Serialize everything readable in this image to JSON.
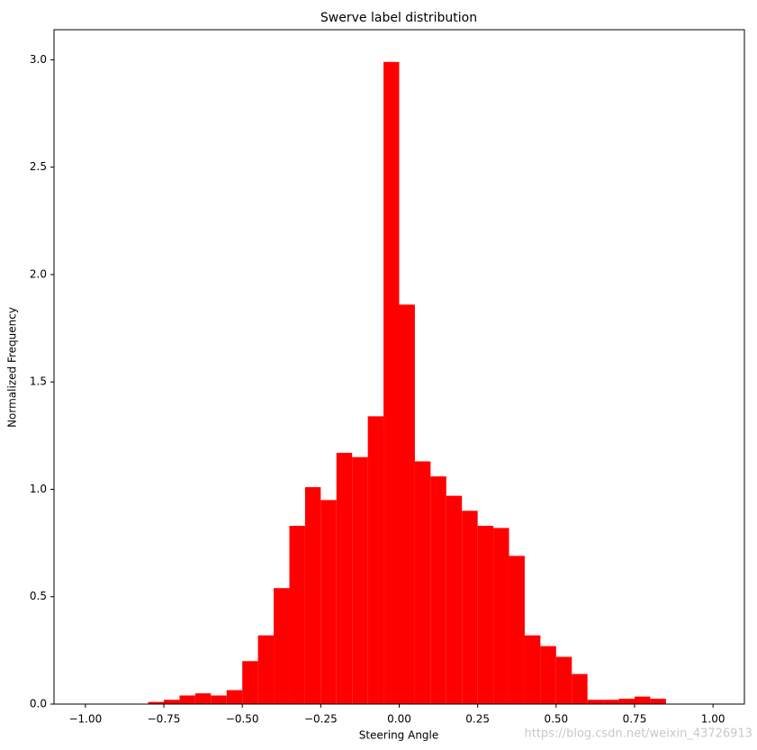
{
  "chart_data": {
    "type": "histogram",
    "title": "Swerve label distribution",
    "x_label": "Steering Angle",
    "y_label": "Normalized Frequency",
    "color": "#ff0000",
    "bins": [
      -0.8,
      -0.75,
      -0.7,
      -0.65,
      -0.6,
      -0.55,
      -0.5,
      -0.45,
      -0.4,
      -0.35,
      -0.3,
      -0.25,
      -0.2,
      -0.15,
      -0.1,
      -0.05,
      0,
      0.05,
      0.1,
      0.15,
      0.2,
      0.25,
      0.3,
      0.35,
      0.4,
      0.45,
      0.5,
      0.55,
      0.6,
      0.65,
      0.7,
      0.75,
      0.8,
      0.85
    ],
    "values": [
      0.01,
      0.02,
      0.04,
      0.05,
      0.04,
      0.065,
      0.2,
      0.32,
      0.54,
      0.83,
      1.01,
      0.95,
      1.17,
      1.15,
      1.34,
      2.99,
      1.86,
      1.13,
      1.06,
      0.97,
      0.9,
      0.83,
      0.82,
      0.69,
      0.32,
      0.27,
      0.22,
      0.14,
      0.02,
      0.02,
      0.025,
      0.035,
      0.025
    ],
    "xlim": [
      -1.1,
      1.1
    ],
    "ylim": [
      0,
      3.14
    ],
    "xticks": [
      {
        "value": -1,
        "label": "−1.00"
      },
      {
        "value": -0.75,
        "label": "−0.75"
      },
      {
        "value": -0.5,
        "label": "−0.50"
      },
      {
        "value": -0.25,
        "label": "−0.25"
      },
      {
        "value": 0,
        "label": "0.00"
      },
      {
        "value": 0.25,
        "label": "0.25"
      },
      {
        "value": 0.5,
        "label": "0.50"
      },
      {
        "value": 0.75,
        "label": "0.75"
      },
      {
        "value": 1,
        "label": "1.00"
      }
    ],
    "yticks": [
      {
        "value": 0,
        "label": "0.0"
      },
      {
        "value": 0.5,
        "label": "0.5"
      },
      {
        "value": 1,
        "label": "1.0"
      },
      {
        "value": 1.5,
        "label": "1.5"
      },
      {
        "value": 2,
        "label": "2.0"
      },
      {
        "value": 2.5,
        "label": "2.5"
      },
      {
        "value": 3,
        "label": "3.0"
      }
    ],
    "watermark": "https://blog.csdn.net/weixin_43726913"
  }
}
